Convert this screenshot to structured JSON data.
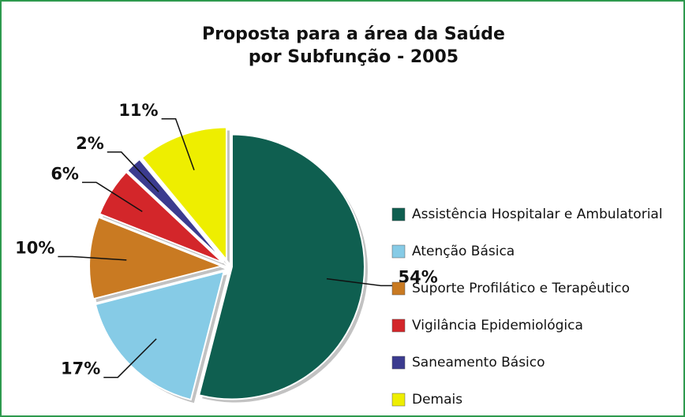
{
  "chart_data": {
    "type": "pie",
    "title": [
      "Proposta para a área da Saúde",
      "por Subfunção - 2005"
    ],
    "categories": [
      "Assistência Hospitalar e Ambulatorial",
      "Atenção Básica",
      "Suporte Profilático e Terapêutico",
      "Vigilância Epidemiológica",
      "Saneamento Básico",
      "Demais"
    ],
    "values": [
      54,
      17,
      10,
      6,
      2,
      11
    ],
    "value_labels": [
      "54%",
      "17%",
      "10%",
      "6%",
      "2%",
      "11%"
    ],
    "colors": [
      "#0f5f50",
      "#86cbe6",
      "#c97a22",
      "#d3262a",
      "#3b3b8f",
      "#eeee00"
    ],
    "legend": "right"
  }
}
